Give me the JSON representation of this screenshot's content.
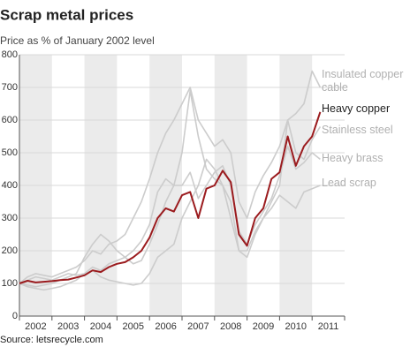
{
  "chart_data": {
    "type": "line",
    "title": "Scrap metal prices",
    "subtitle": "Price as % of January 2002 level",
    "source": "Source: letsrecycle.com",
    "x": [
      2002,
      2002.25,
      2002.5,
      2002.75,
      2003,
      2003.25,
      2003.5,
      2003.75,
      2004,
      2004.25,
      2004.5,
      2004.75,
      2005,
      2005.25,
      2005.5,
      2005.75,
      2006,
      2006.25,
      2006.5,
      2006.75,
      2007,
      2007.25,
      2007.5,
      2007.75,
      2008,
      2008.25,
      2008.5,
      2008.75,
      2009,
      2009.25,
      2009.5,
      2009.75,
      2010,
      2010.25,
      2010.5,
      2010.75,
      2011,
      2011.25
    ],
    "series": [
      {
        "name": "Insulated copper cable",
        "color": "#cccccc",
        "values": [
          100,
          120,
          130,
          125,
          120,
          130,
          140,
          150,
          170,
          200,
          190,
          220,
          230,
          250,
          300,
          350,
          420,
          500,
          560,
          600,
          650,
          700,
          600,
          560,
          520,
          540,
          500,
          350,
          300,
          380,
          430,
          470,
          520,
          600,
          620,
          650,
          750,
          700
        ]
      },
      {
        "name": "Heavy copper",
        "color": "#9b1b1e",
        "values": [
          100,
          108,
          103,
          105,
          107,
          110,
          112,
          118,
          125,
          140,
          135,
          150,
          160,
          165,
          180,
          200,
          240,
          300,
          330,
          320,
          370,
          380,
          300,
          390,
          400,
          445,
          410,
          250,
          215,
          300,
          330,
          420,
          440,
          550,
          460,
          520,
          550,
          625
        ]
      },
      {
        "name": "Stainless steel",
        "color": "#cccccc",
        "values": [
          100,
          95,
          90,
          95,
          100,
          110,
          120,
          130,
          180,
          220,
          250,
          230,
          200,
          180,
          160,
          170,
          220,
          280,
          350,
          400,
          500,
          690,
          550,
          450,
          420,
          400,
          350,
          200,
          180,
          250,
          300,
          350,
          400,
          600,
          500,
          480,
          540,
          580
        ]
      },
      {
        "name": "Heavy brass",
        "color": "#cccccc",
        "values": [
          100,
          110,
          120,
          115,
          110,
          120,
          130,
          125,
          130,
          150,
          140,
          160,
          170,
          180,
          200,
          230,
          280,
          380,
          420,
          400,
          400,
          440,
          360,
          400,
          440,
          460,
          400,
          260,
          220,
          280,
          320,
          360,
          430,
          520,
          450,
          470,
          500,
          480
        ]
      },
      {
        "name": "Lead scrap",
        "color": "#cccccc",
        "values": [
          100,
          90,
          85,
          80,
          85,
          90,
          100,
          110,
          130,
          140,
          120,
          110,
          105,
          100,
          95,
          100,
          130,
          180,
          200,
          220,
          300,
          350,
          400,
          480,
          450,
          400,
          300,
          200,
          200,
          260,
          300,
          330,
          370,
          350,
          330,
          380,
          390,
          400
        ]
      }
    ],
    "xlim": [
      2002,
      2012
    ],
    "xticks": [
      {
        "value": 2002.5,
        "label": "2002"
      },
      {
        "value": 2003.5,
        "label": "2003"
      },
      {
        "value": 2004.5,
        "label": "2004"
      },
      {
        "value": 2005.5,
        "label": "2005"
      },
      {
        "value": 2006.5,
        "label": "2006"
      },
      {
        "value": 2007.5,
        "label": "2007"
      },
      {
        "value": 2008.5,
        "label": "2008"
      },
      {
        "value": 2009.5,
        "label": "2009"
      },
      {
        "value": 2010.5,
        "label": "2010"
      },
      {
        "value": 2011.5,
        "label": "2011"
      }
    ],
    "ylim": [
      0,
      800
    ],
    "yticks": [
      0,
      100,
      200,
      300,
      400,
      500,
      600,
      700,
      800
    ],
    "grid": true
  }
}
